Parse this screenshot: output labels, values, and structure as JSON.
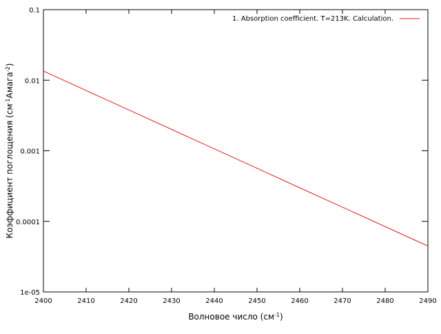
{
  "chart_data": {
    "type": "line",
    "xlabel": [
      "Волновое число (см",
      "-1",
      ")"
    ],
    "ylabel": [
      "Коэффициент поглощения (см",
      "-1",
      "Амага",
      "-2",
      ")"
    ],
    "x": [
      2400,
      2410,
      2420,
      2430,
      2440,
      2450,
      2460,
      2470,
      2480,
      2490
    ],
    "series": [
      {
        "name": "1. Absorption coefficient. T=213K. Calculation.",
        "color": "#e41a1c",
        "values": [
          0.0135,
          0.00715,
          0.00379,
          0.00201,
          0.001066,
          0.000565,
          0.000299,
          0.000159,
          8.42e-05,
          4.47e-05
        ]
      }
    ],
    "xlim": [
      2400,
      2490
    ],
    "xticks": [
      2400,
      2410,
      2420,
      2430,
      2440,
      2450,
      2460,
      2470,
      2480,
      2490
    ],
    "ylim": [
      1e-05,
      0.1
    ],
    "yticks": [
      {
        "value": 1e-05,
        "label": "1e-05"
      },
      0.0001,
      0.001,
      0.01,
      0.1
    ],
    "ylog": true,
    "legend": "top-right"
  }
}
